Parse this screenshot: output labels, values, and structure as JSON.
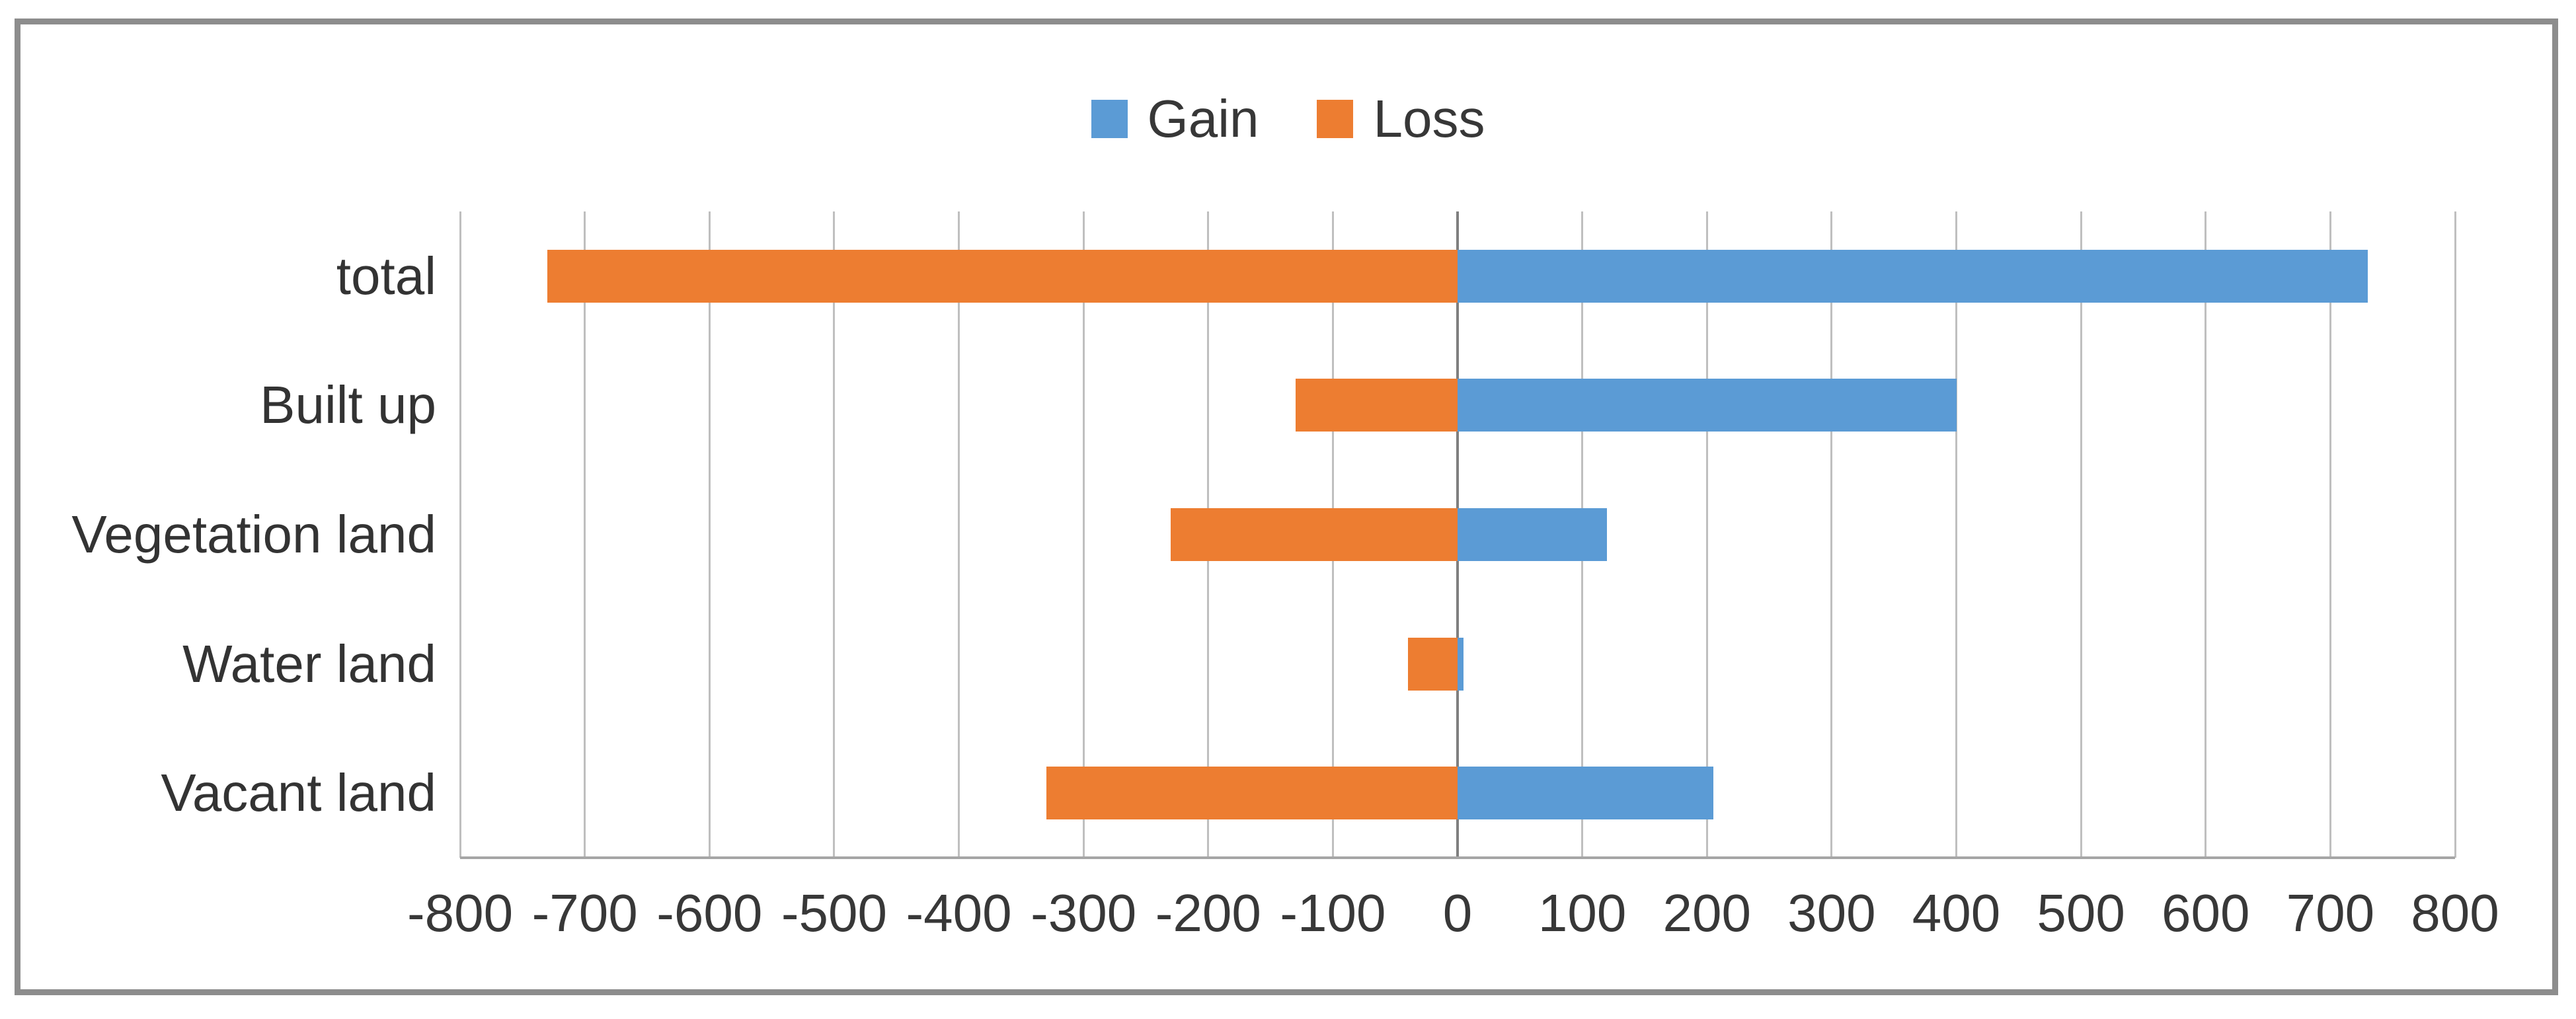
{
  "frame": {
    "border_color": "#8d8d8d",
    "background": "#ffffff"
  },
  "legend": {
    "position": "top-center",
    "items": [
      {
        "label": "Gain",
        "color": "#5B9BD5"
      },
      {
        "label": "Loss",
        "color": "#ED7D31"
      }
    ]
  },
  "chart_data": {
    "type": "bar",
    "orientation": "horizontal",
    "title": "",
    "xlabel": "",
    "ylabel": "",
    "categories": [
      "total",
      "Built up",
      "Vegetation land",
      "Water land",
      "Vacant land"
    ],
    "series": [
      {
        "name": "Gain",
        "color": "#5B9BD5",
        "values": [
          730,
          400,
          120,
          5,
          205
        ]
      },
      {
        "name": "Loss",
        "color": "#ED7D31",
        "values": [
          -730,
          -130,
          -230,
          -40,
          -330
        ]
      }
    ],
    "xlim": [
      -800,
      800
    ],
    "xtick_step": 100,
    "xtick_labels": [
      "-800",
      "-700",
      "-600",
      "-500",
      "-400",
      "-300",
      "-200",
      "-100",
      "0",
      "100",
      "200",
      "300",
      "400",
      "500",
      "600",
      "700",
      "800"
    ],
    "grid": true,
    "legend_position": "top-center",
    "gridline_color": "#bfbfbf",
    "zero_line_color": "#7f7f7f",
    "axis_line_color": "#a6a6a6",
    "axis_text_color": "#383838"
  }
}
